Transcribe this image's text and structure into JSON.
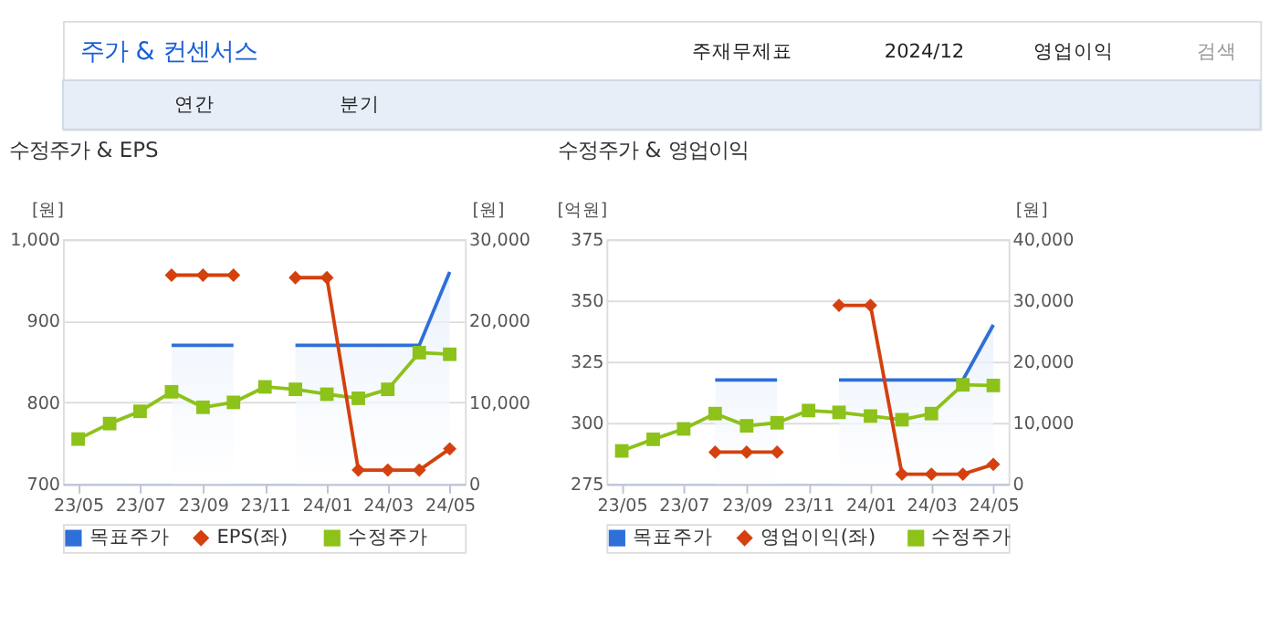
{
  "chart_data": [
    {
      "type": "line",
      "title": "수정주가 & EPS",
      "ylabel": "[원]",
      "y2label": "[원]",
      "annotations": [
        "주가 & 컨센서스",
        "주재무제표",
        "2024/12",
        "영업이익",
        "검색",
        "연간",
        "분기"
      ],
      "x": [
        "2023-05",
        "2023-06",
        "2023-07",
        "2023-08",
        "2023-09",
        "2023-10",
        "2023-11",
        "2023-12",
        "2024-01",
        "2024-02",
        "2024-03",
        "2024-04",
        "2024-05"
      ],
      "xlim": [
        "2023-04-16",
        "2024-05-16"
      ],
      "xticks": [
        {
          "value": "2023-05",
          "label": "23/05"
        },
        {
          "value": "2023-07",
          "label": "23/07"
        },
        {
          "value": "2023-09",
          "label": "23/09"
        },
        {
          "value": "2023-11",
          "label": "23/11"
        },
        {
          "value": "2024-01",
          "label": "24/01"
        },
        {
          "value": "2024-03",
          "label": "24/03"
        },
        {
          "value": "2024-05",
          "label": "24/05"
        }
      ],
      "ylim": [
        700,
        1000
      ],
      "yticks": [
        700,
        800,
        900,
        {
          "value": 1000,
          "label": "1,000"
        }
      ],
      "y2lim": [
        0,
        30000
      ],
      "y2ticks": [
        0,
        {
          "value": 10000,
          "label": "10,000"
        },
        {
          "value": 20000,
          "label": "20,000"
        },
        {
          "value": 30000,
          "label": "30,000"
        }
      ],
      "grid": "y",
      "legend": "bottom",
      "line_style": "solid",
      "series": [
        {
          "name": "목표주가",
          "type": "area",
          "axis": "y2",
          "color": "#2f6fd8",
          "marker": "none",
          "values": [
            null,
            null,
            null,
            17000,
            17000,
            17000,
            null,
            17000,
            17000,
            17000,
            17000,
            17000,
            26000
          ]
        },
        {
          "name": "EPS(좌)",
          "axis": "y",
          "color": "#d4400e",
          "marker": "diamond",
          "values": [
            null,
            null,
            null,
            956,
            956,
            956,
            null,
            953,
            953,
            717,
            717,
            717,
            743
          ]
        },
        {
          "name": "수정주가",
          "axis": "y2",
          "color": "#8cc21a",
          "marker": "square",
          "values": [
            5500,
            7400,
            8900,
            11300,
            9400,
            10000,
            11900,
            11600,
            11000,
            10500,
            11600,
            16100,
            15900
          ]
        }
      ]
    },
    {
      "type": "line",
      "title": "수정주가 & 영업이익",
      "ylabel": "[억원]",
      "y2label": "[원]",
      "x": [
        "2023-05",
        "2023-06",
        "2023-07",
        "2023-08",
        "2023-09",
        "2023-10",
        "2023-11",
        "2023-12",
        "2024-01",
        "2024-02",
        "2024-03",
        "2024-04",
        "2024-05"
      ],
      "xlim": [
        "2023-04-16",
        "2024-05-16"
      ],
      "xticks": [
        {
          "value": "2023-05",
          "label": "23/05"
        },
        {
          "value": "2023-07",
          "label": "23/07"
        },
        {
          "value": "2023-09",
          "label": "23/09"
        },
        {
          "value": "2023-11",
          "label": "23/11"
        },
        {
          "value": "2024-01",
          "label": "24/01"
        },
        {
          "value": "2024-03",
          "label": "24/03"
        },
        {
          "value": "2024-05",
          "label": "24/05"
        }
      ],
      "ylim": [
        275,
        375
      ],
      "yticks": [
        275,
        300,
        325,
        350,
        375
      ],
      "y2lim": [
        0,
        40000
      ],
      "y2ticks": [
        0,
        {
          "value": 10000,
          "label": "10,000"
        },
        {
          "value": 20000,
          "label": "20,000"
        },
        {
          "value": 30000,
          "label": "30,000"
        },
        {
          "value": 40000,
          "label": "40,000"
        }
      ],
      "grid": "y",
      "legend": "bottom",
      "line_style": "solid",
      "series": [
        {
          "name": "목표주가",
          "type": "area",
          "axis": "y2",
          "color": "#2f6fd8",
          "marker": "none",
          "values": [
            null,
            null,
            null,
            17000,
            17000,
            17000,
            null,
            17000,
            17000,
            17000,
            17000,
            17000,
            26000
          ]
        },
        {
          "name": "영업이익(좌)",
          "axis": "y",
          "color": "#d4400e",
          "marker": "diamond",
          "values": [
            null,
            null,
            null,
            288,
            288,
            288,
            null,
            348,
            348,
            279,
            279,
            279,
            283
          ]
        },
        {
          "name": "수정주가",
          "axis": "y2",
          "color": "#8cc21a",
          "marker": "square",
          "values": [
            5400,
            7300,
            9000,
            11500,
            9500,
            10000,
            12000,
            11700,
            11100,
            10500,
            11500,
            16200,
            16100
          ]
        }
      ]
    }
  ]
}
